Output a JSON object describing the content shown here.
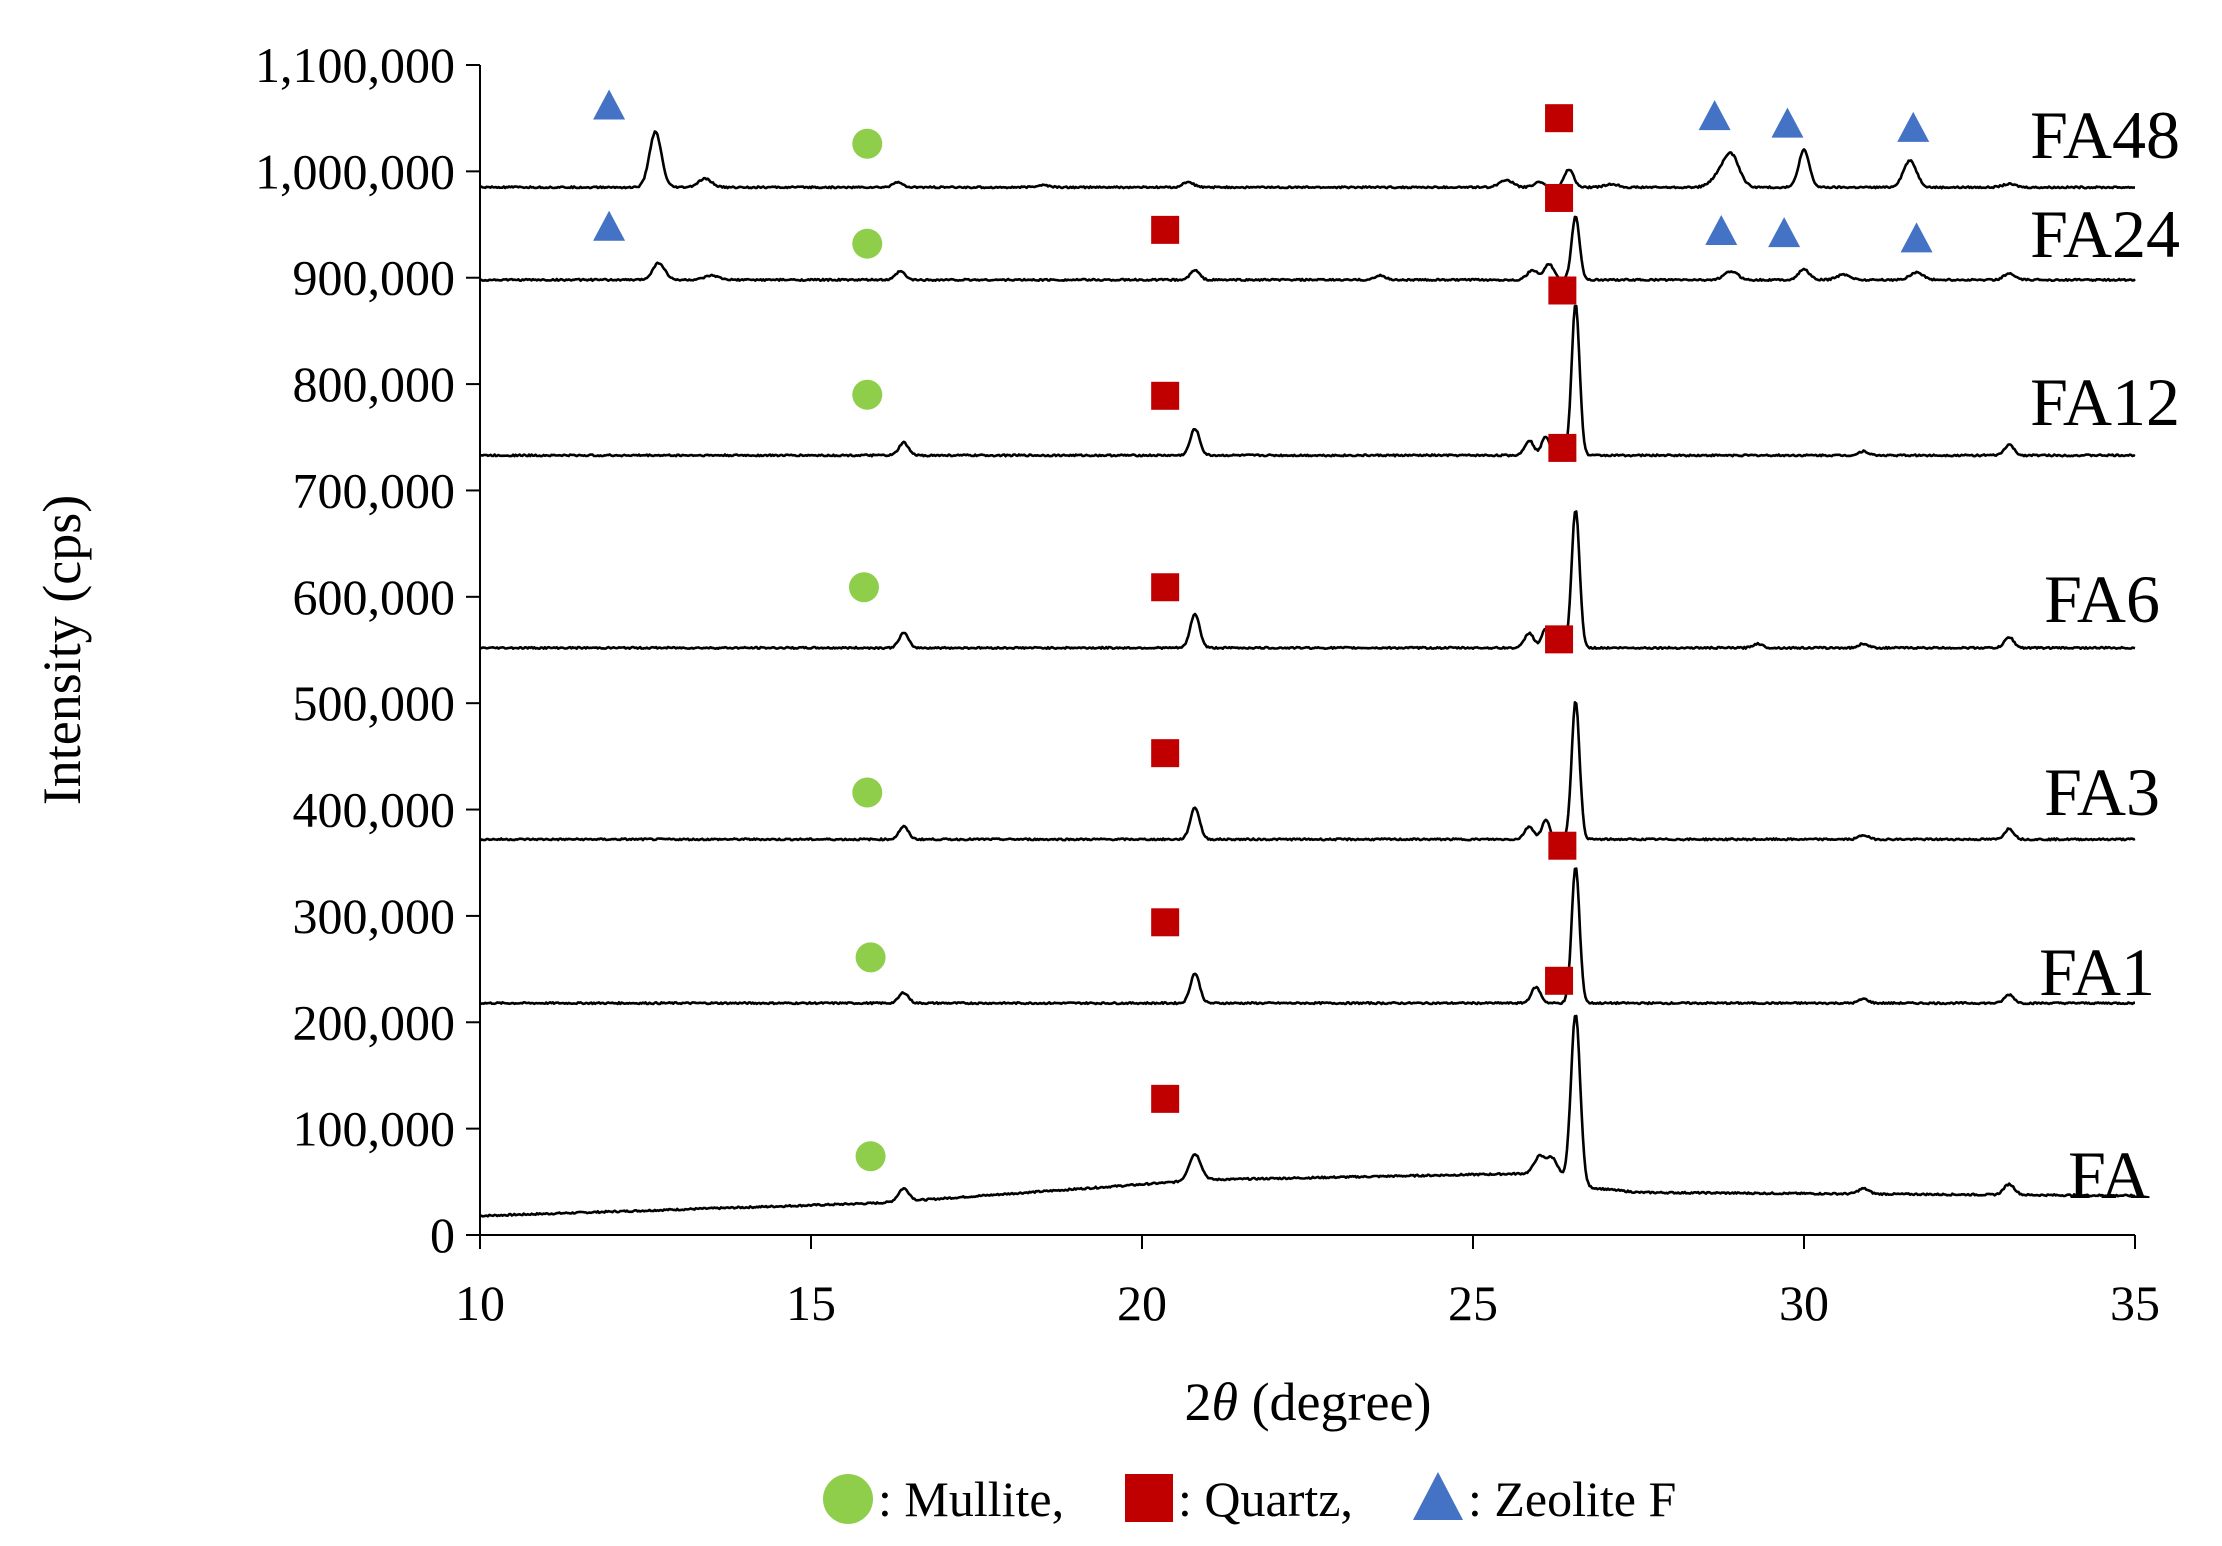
{
  "chart_data": {
    "type": "line",
    "title": "",
    "xlabel_prefix": "2",
    "xlabel_symbol": "θ",
    "xlabel_suffix": " (degree)",
    "ylabel": "Intensity (cps)",
    "xlim": [
      10,
      35
    ],
    "ylim": [
      0,
      1100000
    ],
    "xticks": [
      "10",
      "15",
      "20",
      "25",
      "30",
      "35"
    ],
    "yticks": [
      "0",
      "100,000",
      "200,000",
      "300,000",
      "400,000",
      "500,000",
      "600,000",
      "700,000",
      "800,000",
      "900,000",
      "1,000,000",
      "1,100,000"
    ],
    "grid": false,
    "series": [
      {
        "name": "FA",
        "baseline": [
          [
            10,
            18000
          ],
          [
            16,
            30000
          ],
          [
            21,
            52000
          ],
          [
            26,
            58000
          ],
          [
            26.7,
            45000
          ],
          [
            27.5,
            40000
          ],
          [
            35,
            37000
          ]
        ],
        "peaks": [
          [
            16.4,
            12000,
            0.08
          ],
          [
            20.8,
            25000,
            0.09
          ],
          [
            26.0,
            15000,
            0.08
          ],
          [
            26.2,
            18000,
            0.09
          ],
          [
            26.55,
            160000,
            0.07
          ],
          [
            30.9,
            5000,
            0.08
          ],
          [
            33.1,
            10000,
            0.08
          ]
        ]
      },
      {
        "name": "FA1",
        "baseline": [
          [
            10,
            218000
          ],
          [
            35,
            218000
          ]
        ],
        "peaks": [
          [
            16.4,
            10000,
            0.07
          ],
          [
            20.8,
            28000,
            0.07
          ],
          [
            25.95,
            15000,
            0.07
          ],
          [
            26.55,
            128000,
            0.06
          ],
          [
            30.9,
            4000,
            0.07
          ],
          [
            33.1,
            8000,
            0.07
          ]
        ]
      },
      {
        "name": "FA3",
        "baseline": [
          [
            10,
            372000
          ],
          [
            35,
            372000
          ]
        ],
        "peaks": [
          [
            16.4,
            12000,
            0.07
          ],
          [
            20.8,
            30000,
            0.07
          ],
          [
            25.85,
            12000,
            0.07
          ],
          [
            26.1,
            18000,
            0.06
          ],
          [
            26.55,
            130000,
            0.06
          ],
          [
            30.9,
            4000,
            0.07
          ],
          [
            33.1,
            10000,
            0.07
          ]
        ]
      },
      {
        "name": "FA6",
        "baseline": [
          [
            10,
            552000
          ],
          [
            35,
            552000
          ]
        ],
        "peaks": [
          [
            16.4,
            14000,
            0.07
          ],
          [
            20.8,
            32000,
            0.07
          ],
          [
            25.85,
            14000,
            0.07
          ],
          [
            26.1,
            18000,
            0.06
          ],
          [
            26.55,
            130000,
            0.06
          ],
          [
            29.3,
            4000,
            0.07
          ],
          [
            30.9,
            4000,
            0.07
          ],
          [
            33.1,
            10000,
            0.07
          ]
        ]
      },
      {
        "name": "FA12",
        "baseline": [
          [
            10,
            733000
          ],
          [
            35,
            733000
          ]
        ],
        "peaks": [
          [
            16.4,
            12000,
            0.07
          ],
          [
            20.8,
            25000,
            0.07
          ],
          [
            25.85,
            14000,
            0.07
          ],
          [
            26.1,
            18000,
            0.06
          ],
          [
            26.55,
            142000,
            0.06
          ],
          [
            30.9,
            4000,
            0.07
          ],
          [
            33.1,
            10000,
            0.07
          ]
        ]
      },
      {
        "name": "FA24",
        "baseline": [
          [
            10,
            898000
          ],
          [
            35,
            898000
          ]
        ],
        "peaks": [
          [
            12.7,
            16000,
            0.09
          ],
          [
            13.5,
            4000,
            0.1
          ],
          [
            16.35,
            8000,
            0.07
          ],
          [
            20.8,
            9000,
            0.07
          ],
          [
            23.6,
            4000,
            0.08
          ],
          [
            25.9,
            9000,
            0.08
          ],
          [
            26.15,
            15000,
            0.07
          ],
          [
            26.55,
            60000,
            0.06
          ],
          [
            28.9,
            8000,
            0.1
          ],
          [
            30.0,
            10000,
            0.08
          ],
          [
            30.6,
            5000,
            0.1
          ],
          [
            31.7,
            7000,
            0.1
          ],
          [
            33.1,
            6000,
            0.08
          ]
        ]
      },
      {
        "name": "FA48",
        "baseline": [
          [
            10,
            985000
          ],
          [
            35,
            985000
          ]
        ],
        "peaks": [
          [
            12.65,
            52000,
            0.09
          ],
          [
            13.4,
            8000,
            0.1
          ],
          [
            16.3,
            5000,
            0.07
          ],
          [
            18.5,
            2000,
            0.1
          ],
          [
            20.7,
            5000,
            0.08
          ],
          [
            25.5,
            7000,
            0.1
          ],
          [
            26.0,
            5000,
            0.08
          ],
          [
            26.45,
            17000,
            0.07
          ],
          [
            27.1,
            3000,
            0.1
          ],
          [
            28.7,
            8000,
            0.12
          ],
          [
            28.9,
            30000,
            0.12
          ],
          [
            30.0,
            35000,
            0.08
          ],
          [
            31.6,
            25000,
            0.1
          ],
          [
            33.1,
            3000,
            0.1
          ]
        ]
      }
    ],
    "markers": [
      {
        "type": "triangle",
        "x": 11.95,
        "y": 1061000
      },
      {
        "type": "circle",
        "x": 15.85,
        "y": 1026000
      },
      {
        "type": "square",
        "x": 26.3,
        "y": 1050000
      },
      {
        "type": "triangle",
        "x": 28.65,
        "y": 1051000
      },
      {
        "type": "triangle",
        "x": 29.75,
        "y": 1044000
      },
      {
        "type": "triangle",
        "x": 31.65,
        "y": 1040000
      },
      {
        "type": "triangle",
        "x": 11.95,
        "y": 947000
      },
      {
        "type": "circle",
        "x": 15.85,
        "y": 932000
      },
      {
        "type": "square",
        "x": 20.35,
        "y": 945000
      },
      {
        "type": "square",
        "x": 26.3,
        "y": 975000
      },
      {
        "type": "triangle",
        "x": 28.75,
        "y": 943000
      },
      {
        "type": "triangle",
        "x": 29.7,
        "y": 941000
      },
      {
        "type": "triangle",
        "x": 31.7,
        "y": 936000
      },
      {
        "type": "square",
        "x": 26.35,
        "y": 888000
      },
      {
        "type": "circle",
        "x": 15.85,
        "y": 790000
      },
      {
        "type": "square",
        "x": 20.35,
        "y": 789000
      },
      {
        "type": "square",
        "x": 26.35,
        "y": 740000
      },
      {
        "type": "circle",
        "x": 15.8,
        "y": 609000
      },
      {
        "type": "square",
        "x": 20.35,
        "y": 609000
      },
      {
        "type": "square",
        "x": 26.3,
        "y": 560000
      },
      {
        "type": "square",
        "x": 20.35,
        "y": 453000
      },
      {
        "type": "circle",
        "x": 15.85,
        "y": 416000
      },
      {
        "type": "square",
        "x": 26.35,
        "y": 366000
      },
      {
        "type": "square",
        "x": 20.35,
        "y": 294000
      },
      {
        "type": "circle",
        "x": 15.9,
        "y": 261000
      },
      {
        "type": "square",
        "x": 26.3,
        "y": 239000
      },
      {
        "type": "square",
        "x": 20.35,
        "y": 128000
      },
      {
        "type": "circle",
        "x": 15.9,
        "y": 74000
      }
    ],
    "legend": [
      {
        "symbol": "circle",
        "label": ": Mullite,"
      },
      {
        "symbol": "square",
        "label": ": Quartz,"
      },
      {
        "symbol": "triangle",
        "label": ": Zeolite F"
      }
    ],
    "legend_position": "bottom-center"
  },
  "colors": {
    "mullite": "#8fce4a",
    "quartz": "#c00000",
    "zeolite": "#4472c4",
    "line": "#000000"
  }
}
